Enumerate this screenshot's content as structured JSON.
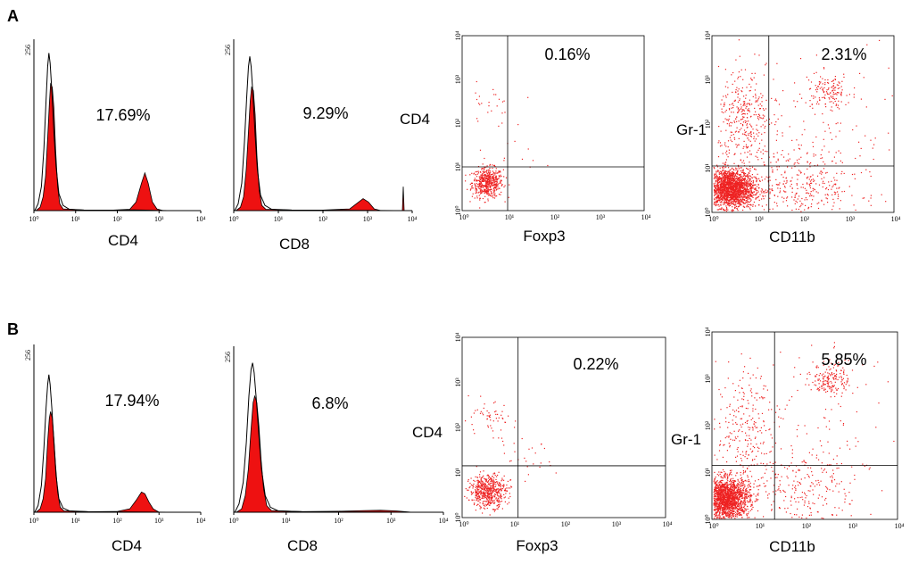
{
  "colors": {
    "fill": "#ee1111",
    "outline": "#000000",
    "dot": "#ee2222"
  },
  "chart_data": [
    {
      "type": "histogram",
      "panel": "A",
      "label": "A",
      "xlabel": "CD4",
      "percent": "17.69%",
      "y_top_tick": "256",
      "xticks": [
        "10⁰",
        "10¹",
        "10²",
        "10³",
        "10⁴"
      ],
      "filled": [
        [
          0.05,
          0
        ],
        [
          0.15,
          0.02
        ],
        [
          0.22,
          0.08
        ],
        [
          0.28,
          0.2
        ],
        [
          0.33,
          0.42
        ],
        [
          0.37,
          0.62
        ],
        [
          0.4,
          0.74
        ],
        [
          0.44,
          0.72
        ],
        [
          0.48,
          0.6
        ],
        [
          0.52,
          0.36
        ],
        [
          0.57,
          0.14
        ],
        [
          0.62,
          0.04
        ],
        [
          0.7,
          0.01
        ],
        [
          1.2,
          0.003
        ],
        [
          1.9,
          0.003
        ],
        [
          2.3,
          0.008
        ],
        [
          2.45,
          0.05
        ],
        [
          2.58,
          0.16
        ],
        [
          2.66,
          0.22
        ],
        [
          2.74,
          0.16
        ],
        [
          2.84,
          0.05
        ],
        [
          2.95,
          0.01
        ],
        [
          3.1,
          0
        ]
      ],
      "open": [
        [
          0.02,
          0
        ],
        [
          0.1,
          0.04
        ],
        [
          0.18,
          0.14
        ],
        [
          0.24,
          0.36
        ],
        [
          0.29,
          0.64
        ],
        [
          0.33,
          0.84
        ],
        [
          0.36,
          0.92
        ],
        [
          0.39,
          0.86
        ],
        [
          0.43,
          0.7
        ],
        [
          0.48,
          0.46
        ],
        [
          0.53,
          0.26
        ],
        [
          0.6,
          0.1
        ],
        [
          0.7,
          0.03
        ],
        [
          0.85,
          0.008
        ],
        [
          1.2,
          0.003
        ],
        [
          2.0,
          0.002
        ],
        [
          2.4,
          0.004
        ],
        [
          3.2,
          0
        ]
      ]
    },
    {
      "type": "histogram",
      "panel": "A",
      "label": "",
      "xlabel": "CD8",
      "percent": "9.29%",
      "y_top_tick": "256",
      "xticks": [
        "10⁰",
        "10¹",
        "10²",
        "10³",
        "10⁴"
      ],
      "filled": [
        [
          0.05,
          0
        ],
        [
          0.15,
          0.02
        ],
        [
          0.22,
          0.08
        ],
        [
          0.28,
          0.24
        ],
        [
          0.33,
          0.46
        ],
        [
          0.37,
          0.64
        ],
        [
          0.4,
          0.72
        ],
        [
          0.44,
          0.7
        ],
        [
          0.48,
          0.56
        ],
        [
          0.52,
          0.32
        ],
        [
          0.57,
          0.12
        ],
        [
          0.63,
          0.03
        ],
        [
          0.72,
          0.008
        ],
        [
          1.3,
          0.003
        ],
        [
          2.0,
          0.003
        ],
        [
          2.6,
          0.01
        ],
        [
          2.75,
          0.04
        ],
        [
          2.9,
          0.07
        ],
        [
          3.02,
          0.05
        ],
        [
          3.15,
          0.01
        ],
        [
          3.3,
          0
        ],
        [
          3.78,
          0
        ],
        [
          3.8,
          0.14
        ],
        [
          3.82,
          0
        ]
      ],
      "open": [
        [
          0.02,
          0
        ],
        [
          0.1,
          0.04
        ],
        [
          0.18,
          0.16
        ],
        [
          0.24,
          0.4
        ],
        [
          0.29,
          0.66
        ],
        [
          0.33,
          0.84
        ],
        [
          0.36,
          0.9
        ],
        [
          0.39,
          0.84
        ],
        [
          0.43,
          0.68
        ],
        [
          0.48,
          0.44
        ],
        [
          0.53,
          0.24
        ],
        [
          0.6,
          0.09
        ],
        [
          0.7,
          0.03
        ],
        [
          0.85,
          0.008
        ],
        [
          1.3,
          0.003
        ],
        [
          3.6,
          0
        ]
      ]
    },
    {
      "type": "scatter_quadrant",
      "panel": "A",
      "xlabel": "Foxp3",
      "ylabel": "CD4",
      "percent": "0.16%",
      "gate_x": 1.0,
      "gate_y": 1.0,
      "xticks": [
        "10⁰",
        "10¹",
        "10²",
        "10³",
        "10⁴"
      ],
      "yticks": [
        "10⁰",
        "10¹",
        "10²",
        "10³",
        "10⁴"
      ],
      "clusters": [
        {
          "cx": 0.55,
          "cy": 0.65,
          "sx": 0.17,
          "sy": 0.17,
          "n": 520
        },
        {
          "cx": 0.55,
          "cy": 2.4,
          "sx": 0.28,
          "sy": 0.25,
          "n": 28
        },
        {
          "cx": 1.2,
          "cy": 1.25,
          "sx": 0.4,
          "sy": 0.2,
          "n": 10
        }
      ]
    },
    {
      "type": "scatter_quadrant",
      "panel": "A",
      "xlabel": "CD11b",
      "ylabel": "Gr-1",
      "percent": "2.31%",
      "gate_x": 1.25,
      "gate_y": 1.05,
      "xticks": [
        "10⁰",
        "10¹",
        "10²",
        "10³",
        "10⁴"
      ],
      "yticks": [
        "10⁰",
        "10¹",
        "10²",
        "10³",
        "10⁴"
      ],
      "clusters": [
        {
          "cx": 0.4,
          "cy": 0.55,
          "sx": 0.26,
          "sy": 0.22,
          "n": 2000
        },
        {
          "cx": 0.7,
          "cy": 2.1,
          "sx": 0.28,
          "sy": 0.55,
          "n": 320
        },
        {
          "cx": 2.55,
          "cy": 2.75,
          "sx": 0.25,
          "sy": 0.2,
          "n": 130
        },
        {
          "cx": 1.9,
          "cy": 0.6,
          "sx": 0.7,
          "sy": 0.45,
          "n": 380
        },
        {
          "cx": 2.0,
          "cy": 2.0,
          "sx": 1.1,
          "sy": 1.0,
          "n": 140
        }
      ]
    },
    {
      "type": "histogram",
      "panel": "B",
      "label": "B",
      "xlabel": "CD4",
      "percent": "17.94%",
      "y_top_tick": "256",
      "xticks": [
        "10⁰",
        "10¹",
        "10²",
        "10³",
        "10⁴"
      ],
      "filled": [
        [
          0.05,
          0
        ],
        [
          0.15,
          0.02
        ],
        [
          0.22,
          0.08
        ],
        [
          0.28,
          0.2
        ],
        [
          0.33,
          0.42
        ],
        [
          0.37,
          0.56
        ],
        [
          0.4,
          0.6
        ],
        [
          0.44,
          0.56
        ],
        [
          0.48,
          0.44
        ],
        [
          0.52,
          0.28
        ],
        [
          0.57,
          0.12
        ],
        [
          0.63,
          0.03
        ],
        [
          0.72,
          0.008
        ],
        [
          1.3,
          0.003
        ],
        [
          2.0,
          0.005
        ],
        [
          2.3,
          0.02
        ],
        [
          2.45,
          0.07
        ],
        [
          2.58,
          0.12
        ],
        [
          2.66,
          0.11
        ],
        [
          2.76,
          0.06
        ],
        [
          2.86,
          0.02
        ],
        [
          3.0,
          0
        ]
      ],
      "open": [
        [
          0.02,
          0
        ],
        [
          0.1,
          0.04
        ],
        [
          0.18,
          0.16
        ],
        [
          0.24,
          0.38
        ],
        [
          0.29,
          0.62
        ],
        [
          0.33,
          0.76
        ],
        [
          0.36,
          0.82
        ],
        [
          0.39,
          0.76
        ],
        [
          0.43,
          0.62
        ],
        [
          0.48,
          0.42
        ],
        [
          0.53,
          0.22
        ],
        [
          0.6,
          0.08
        ],
        [
          0.7,
          0.025
        ],
        [
          0.85,
          0.008
        ],
        [
          1.3,
          0.003
        ],
        [
          3.2,
          0
        ]
      ]
    },
    {
      "type": "histogram",
      "panel": "B",
      "label": "",
      "xlabel": "CD8",
      "percent": "6.8%",
      "y_top_tick": "256",
      "xticks": [
        "10⁰",
        "10¹",
        "10²",
        "10³",
        "10⁴"
      ],
      "filled": [
        [
          0.05,
          0
        ],
        [
          0.15,
          0.02
        ],
        [
          0.22,
          0.1
        ],
        [
          0.28,
          0.26
        ],
        [
          0.33,
          0.5
        ],
        [
          0.37,
          0.66
        ],
        [
          0.4,
          0.7
        ],
        [
          0.44,
          0.66
        ],
        [
          0.48,
          0.52
        ],
        [
          0.52,
          0.32
        ],
        [
          0.57,
          0.14
        ],
        [
          0.63,
          0.04
        ],
        [
          0.72,
          0.01
        ],
        [
          1.3,
          0.004
        ],
        [
          2.0,
          0.006
        ],
        [
          2.5,
          0.01
        ],
        [
          2.8,
          0.012
        ],
        [
          3.1,
          0.008
        ],
        [
          3.4,
          0
        ]
      ],
      "open": [
        [
          0.02,
          0
        ],
        [
          0.1,
          0.05
        ],
        [
          0.18,
          0.18
        ],
        [
          0.24,
          0.42
        ],
        [
          0.29,
          0.7
        ],
        [
          0.33,
          0.86
        ],
        [
          0.36,
          0.9
        ],
        [
          0.39,
          0.84
        ],
        [
          0.43,
          0.68
        ],
        [
          0.48,
          0.46
        ],
        [
          0.53,
          0.26
        ],
        [
          0.6,
          0.1
        ],
        [
          0.7,
          0.03
        ],
        [
          0.85,
          0.008
        ],
        [
          1.3,
          0.003
        ],
        [
          3.4,
          0
        ]
      ]
    },
    {
      "type": "scatter_quadrant",
      "panel": "B",
      "xlabel": "Foxp3",
      "ylabel": "CD4",
      "percent": "0.22%",
      "gate_x": 1.1,
      "gate_y": 1.15,
      "xticks": [
        "10⁰",
        "10¹",
        "10²",
        "10³",
        "10⁴"
      ],
      "yticks": [
        "10⁰",
        "10¹",
        "10²",
        "10³",
        "10⁴"
      ],
      "clusters": [
        {
          "cx": 0.5,
          "cy": 0.6,
          "sx": 0.18,
          "sy": 0.18,
          "n": 560
        },
        {
          "cx": 0.5,
          "cy": 2.2,
          "sx": 0.26,
          "sy": 0.18,
          "n": 55
        },
        {
          "cx": 1.1,
          "cy": 1.3,
          "sx": 0.35,
          "sy": 0.25,
          "n": 30
        }
      ]
    },
    {
      "type": "scatter_quadrant",
      "panel": "B",
      "xlabel": "CD11b",
      "ylabel": "Gr-1",
      "percent": "5.85%",
      "gate_x": 1.35,
      "gate_y": 1.15,
      "xticks": [
        "10⁰",
        "10¹",
        "10²",
        "10³",
        "10⁴"
      ],
      "yticks": [
        "10⁰",
        "10¹",
        "10²",
        "10³",
        "10⁴"
      ],
      "clusters": [
        {
          "cx": 0.3,
          "cy": 0.45,
          "sx": 0.25,
          "sy": 0.22,
          "n": 1900
        },
        {
          "cx": 0.7,
          "cy": 2.0,
          "sx": 0.3,
          "sy": 0.6,
          "n": 230
        },
        {
          "cx": 2.55,
          "cy": 3.0,
          "sx": 0.2,
          "sy": 0.17,
          "n": 170
        },
        {
          "cx": 1.9,
          "cy": 0.6,
          "sx": 0.7,
          "sy": 0.45,
          "n": 260
        },
        {
          "cx": 2.0,
          "cy": 2.0,
          "sx": 1.1,
          "sy": 1.0,
          "n": 120
        }
      ]
    }
  ]
}
